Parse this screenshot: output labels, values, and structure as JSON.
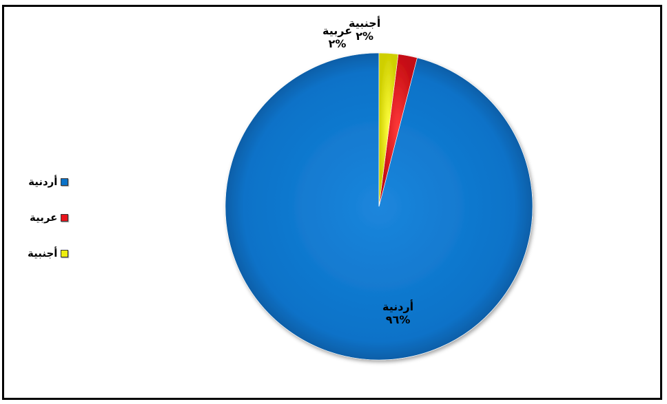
{
  "chart_data": {
    "type": "pie",
    "title": "",
    "legend_position": "left",
    "slices": [
      {
        "label": "أردنية",
        "value": 96,
        "value_text": "%٩٦",
        "color": "#0b72c8"
      },
      {
        "label": "عربية",
        "value": 2,
        "value_text": "%٢",
        "color": "#e8141c"
      },
      {
        "label": "أجنبية",
        "value": 2,
        "value_text": "%٢",
        "color": "#eded10"
      }
    ]
  }
}
